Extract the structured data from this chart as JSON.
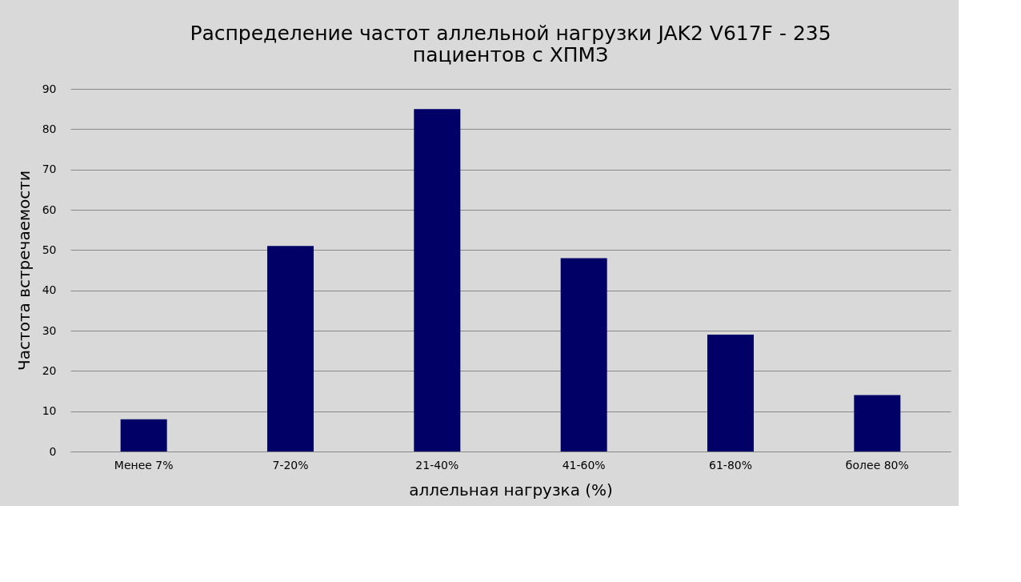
{
  "chart_data": {
    "type": "bar",
    "title": "Распределение частот аллельной нагрузки JAK2 V617F - 235\nпациентов с ХПМЗ",
    "xlabel": "аллельная нагрузка (%)",
    "ylabel": "Частота встречаемости",
    "categories": [
      "Менее 7%",
      "7-20%",
      "21-40%",
      "41-60%",
      "61-80%",
      "более 80%"
    ],
    "values": [
      8,
      51,
      85,
      48,
      29,
      14
    ],
    "color": "#000066",
    "ylim": [
      0,
      90
    ],
    "yticks": [
      0,
      10,
      20,
      30,
      40,
      50,
      60,
      70,
      80,
      90
    ],
    "grid": "y"
  }
}
